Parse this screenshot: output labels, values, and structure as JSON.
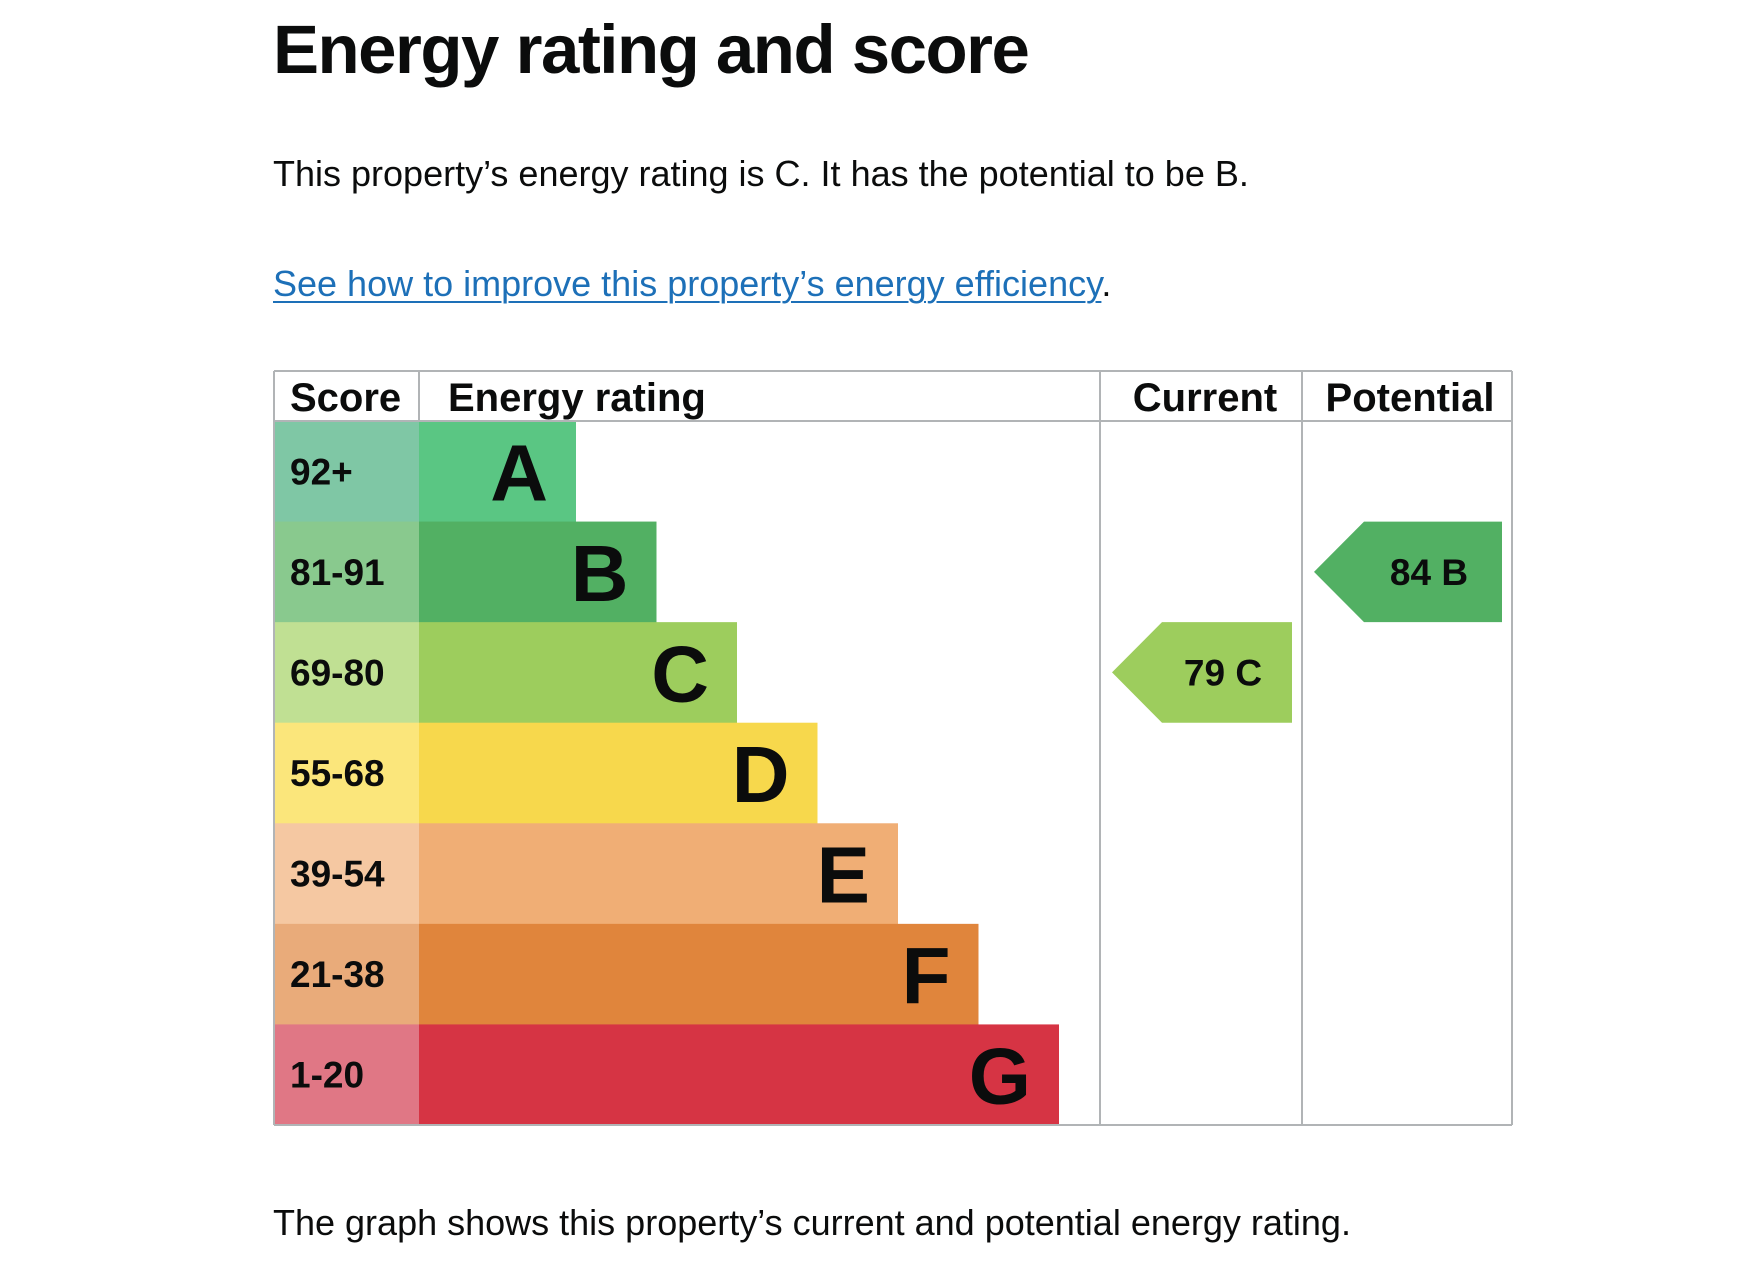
{
  "page": {
    "title": "Energy rating and score",
    "summary": "This property’s energy rating is C. It has the potential to be B.",
    "improve_link": "See how to improve this property’s energy efficiency",
    "improve_suffix": ".",
    "caption": "The graph shows this property’s current and potential energy rating."
  },
  "chart_data": {
    "type": "bar",
    "columns": {
      "score": "Score",
      "rating": "Energy rating",
      "current": "Current",
      "potential": "Potential"
    },
    "bands": [
      {
        "letter": "A",
        "score": "92+",
        "color": "#5ac683",
        "score_color": "#7fc7a5"
      },
      {
        "letter": "B",
        "score": "81-91",
        "color": "#52b063",
        "score_color": "#89c98e"
      },
      {
        "letter": "C",
        "score": "69-80",
        "color": "#9dcd5d",
        "score_color": "#c0e093"
      },
      {
        "letter": "D",
        "score": "55-68",
        "color": "#f7d84c",
        "score_color": "#fbe67b"
      },
      {
        "letter": "E",
        "score": "39-54",
        "color": "#f0ae75",
        "score_color": "#f5c8a2"
      },
      {
        "letter": "F",
        "score": "21-38",
        "color": "#e0853c",
        "score_color": "#e9ab7a"
      },
      {
        "letter": "G",
        "score": "1-20",
        "color": "#d63444",
        "score_color": "#e07785"
      }
    ],
    "current": {
      "value": 79,
      "band": "C",
      "label": "79  C",
      "color": "#9dcd5d"
    },
    "potential": {
      "value": 84,
      "band": "B",
      "label": "84  B",
      "color": "#52b063"
    },
    "grid_color": "#b1b4b6"
  }
}
